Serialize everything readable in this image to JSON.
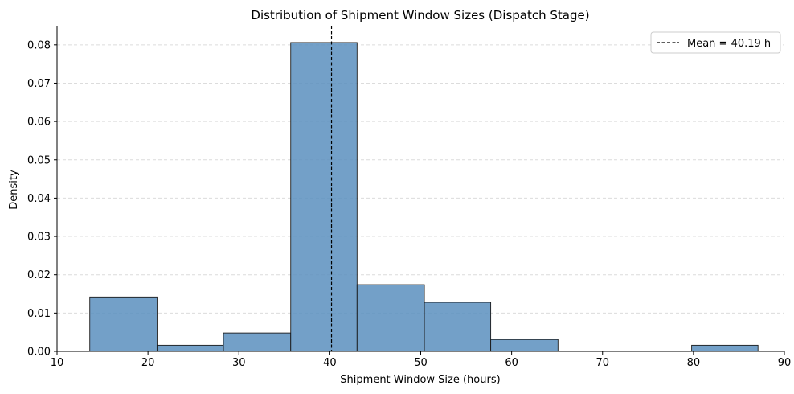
{
  "chart_data": {
    "type": "bar",
    "title": "Distribution of Shipment Window Sizes (Dispatch Stage)",
    "xlabel": "Shipment Window Size (hours)",
    "ylabel": "Density",
    "xlim": [
      10,
      90
    ],
    "ylim": [
      0,
      0.085
    ],
    "xticks": [
      10,
      20,
      30,
      40,
      50,
      60,
      70,
      80,
      90
    ],
    "yticks": [
      0.0,
      0.01,
      0.02,
      0.03,
      0.04,
      0.05,
      0.06,
      0.07,
      0.08
    ],
    "ytick_labels": [
      "0.00",
      "0.01",
      "0.02",
      "0.03",
      "0.04",
      "0.05",
      "0.06",
      "0.07",
      "0.08"
    ],
    "bins": [
      {
        "start": 13.6,
        "end": 21.0,
        "value": 0.0142
      },
      {
        "start": 21.0,
        "end": 28.3,
        "value": 0.0016
      },
      {
        "start": 28.3,
        "end": 35.7,
        "value": 0.0048
      },
      {
        "start": 35.7,
        "end": 43.0,
        "value": 0.0806
      },
      {
        "start": 43.0,
        "end": 50.4,
        "value": 0.0174
      },
      {
        "start": 50.4,
        "end": 57.7,
        "value": 0.0128
      },
      {
        "start": 57.7,
        "end": 65.1,
        "value": 0.0031
      },
      {
        "start": 65.1,
        "end": 72.4,
        "value": 0.0
      },
      {
        "start": 72.4,
        "end": 79.8,
        "value": 0.0
      },
      {
        "start": 79.8,
        "end": 87.1,
        "value": 0.0016
      }
    ],
    "mean": 40.19,
    "legend": {
      "label": "Mean = 40.19 h",
      "placement": "top-right"
    },
    "grid": {
      "y": true,
      "x": false,
      "style": "dashed"
    },
    "colors": {
      "bar_fill": "#5b8fbe",
      "bar_edge": "#1a1a1a",
      "mean_line": "#000000",
      "grid": "#dcdcdc"
    }
  }
}
